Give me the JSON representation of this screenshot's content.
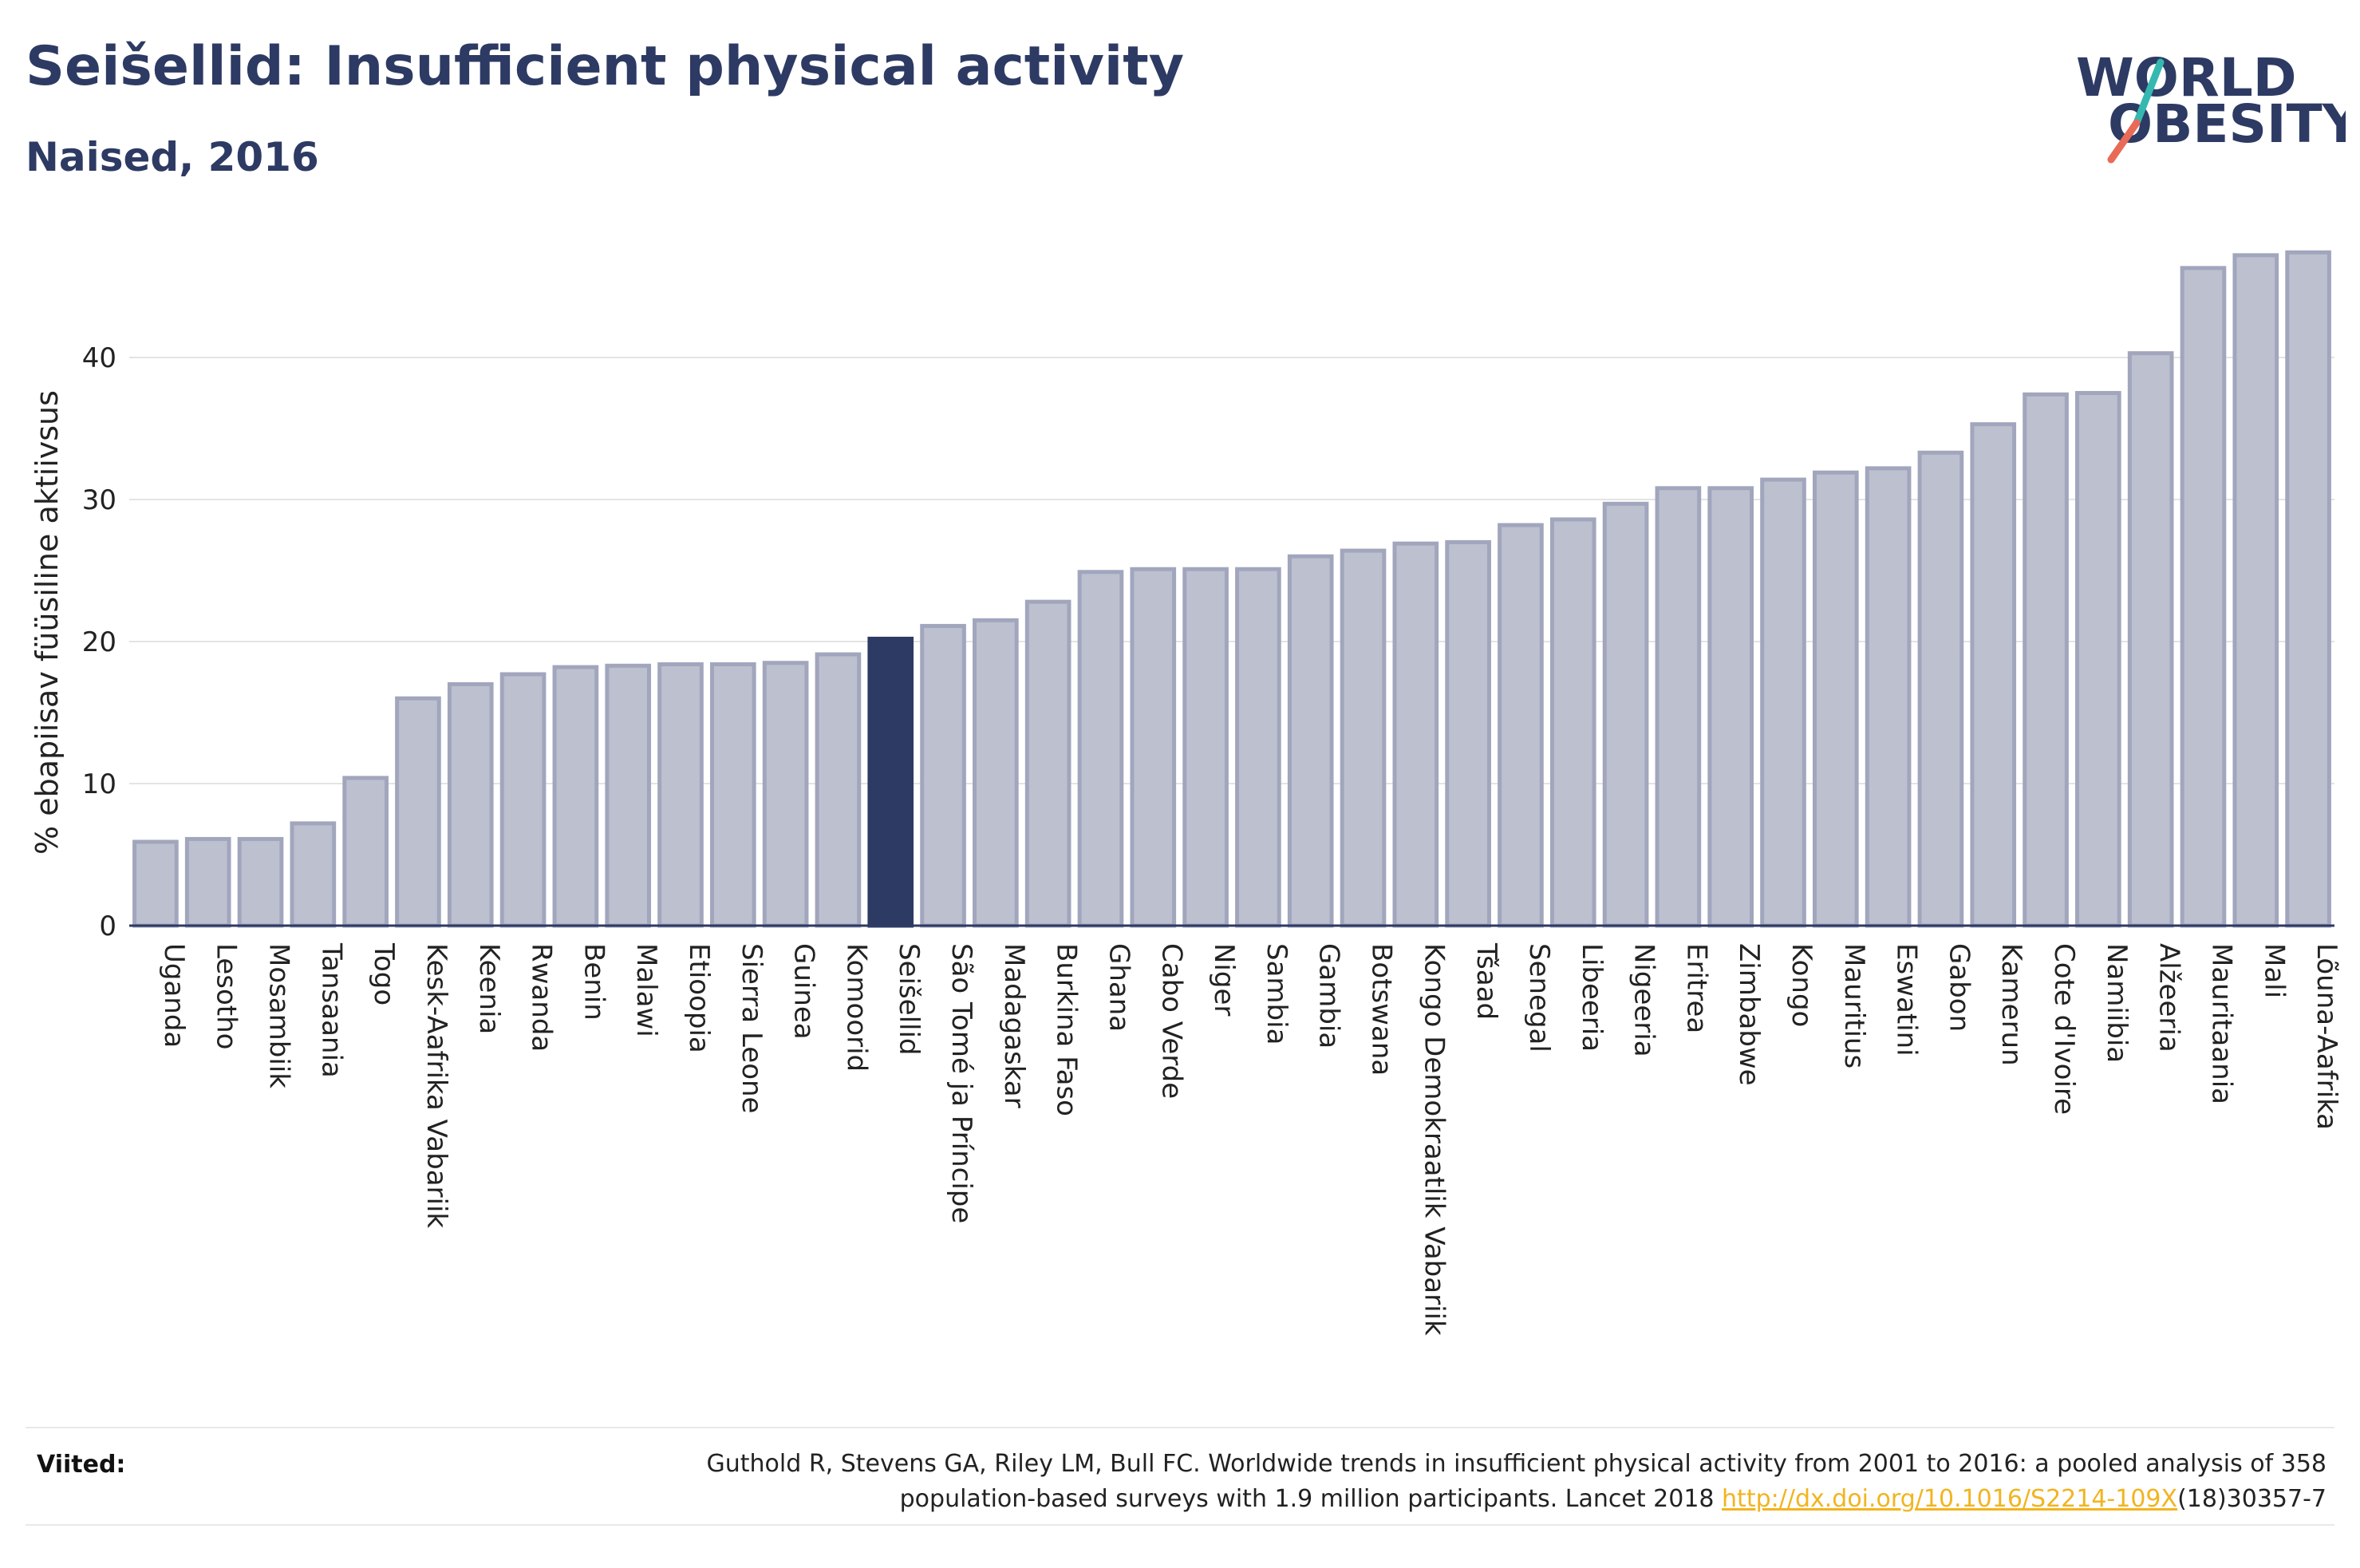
{
  "header": {
    "title": "Seišellid: Insufficient physical activity",
    "subtitle": "Naised, 2016"
  },
  "logo": {
    "line1": "WORLD",
    "line2": "OBESITY"
  },
  "chart_data": {
    "type": "bar",
    "ylabel": "% ebapiisav füüsiline aktiivsus",
    "xlabel": "",
    "ylim": [
      0,
      50
    ],
    "yticks": [
      0,
      10,
      20,
      30,
      40
    ],
    "grid": true,
    "highlight": "Seišellid",
    "colors": {
      "bar": "#bcc0cf",
      "bar_stroke": "#a1a6bd",
      "highlight": "#2d3a63",
      "axis": "#2d3a63",
      "grid": "#e4e4e4"
    },
    "categories": [
      "Uganda",
      "Lesotho",
      "Mosambiik",
      "Tansaania",
      "Togo",
      "Kesk-Aafrika Vabariik",
      "Keenia",
      "Rwanda",
      "Benin",
      "Malawi",
      "Etioopia",
      "Sierra Leone",
      "Guinea",
      "Komoorid",
      "Seišellid",
      "São Tomé ja Príncipe",
      "Madagaskar",
      "Burkina Faso",
      "Ghana",
      "Cabo Verde",
      "Niger",
      "Sambia",
      "Gambia",
      "Botswana",
      "Kongo Demokraatlik Vabariik",
      "Tšaad",
      "Senegal",
      "Libeeria",
      "Nigeeria",
      "Eritrea",
      "Zimbabwe",
      "Kongo",
      "Mauritius",
      "Eswatini",
      "Gabon",
      "Kamerun",
      "Cote d'Ivoire",
      "Namiibia",
      "Alžeeria",
      "Mauritaania",
      "Mali",
      "Lõuna-Aafrika"
    ],
    "values": [
      5.9,
      6.1,
      6.1,
      7.2,
      10.4,
      16.0,
      17.0,
      17.7,
      18.2,
      18.3,
      18.4,
      18.4,
      18.5,
      19.1,
      20.2,
      21.1,
      21.5,
      22.8,
      24.9,
      25.1,
      25.1,
      25.1,
      26.0,
      26.4,
      26.9,
      27.0,
      28.2,
      28.6,
      29.7,
      30.8,
      30.8,
      31.4,
      31.9,
      32.2,
      33.3,
      35.3,
      37.4,
      37.5,
      40.3,
      46.3,
      47.2,
      47.4
    ]
  },
  "source": {
    "label": "Viited:",
    "text_line1": "Guthold R, Stevens GA, Riley LM, Bull FC. Worldwide trends in insufficient physical activity from 2001 to 2016: a pooled analysis of 358",
    "text_line2_before": "population-based surveys with 1.9 million participants. Lancet 2018 ",
    "link": "http://dx.doi.org/10.1016/S2214-109X",
    "text_line2_after": "(18)30357-7"
  }
}
